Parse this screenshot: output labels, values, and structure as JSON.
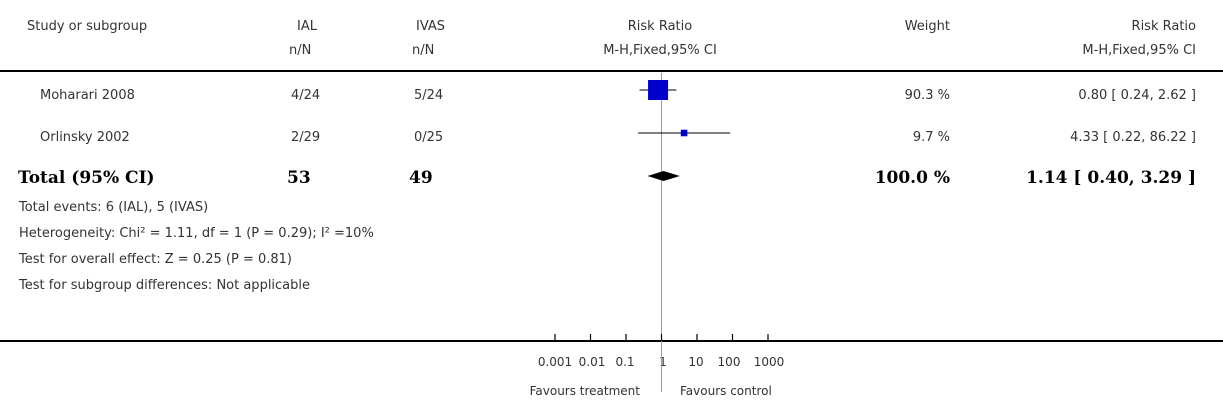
{
  "header": {
    "study": "Study or subgroup",
    "group1": "IAL",
    "group2": "IVAS",
    "nN1": "n/N",
    "nN2": "n/N",
    "plot_title": "Risk Ratio",
    "plot_method": "M-H,Fixed,95% CI",
    "weight": "Weight",
    "effect_title": "Risk Ratio",
    "effect_method": "M-H,Fixed,95% CI"
  },
  "rows": [
    {
      "study": "Moharari 2008",
      "g1": "4/24",
      "g2": "5/24",
      "weight": "90.3 %",
      "ci": "0.80 [ 0.24, 2.62 ]"
    },
    {
      "study": "Orlinsky 2002",
      "g1": "2/29",
      "g2": "0/25",
      "weight": "9.7 %",
      "ci": "4.33 [ 0.22, 86.22 ]"
    }
  ],
  "total": {
    "label": "Total (95% CI)",
    "g1": "53",
    "g2": "49",
    "weight": "100.0 %",
    "ci": "1.14 [ 0.40, 3.29 ]"
  },
  "notes": {
    "events": "Total events: 6 (IAL), 5 (IVAS)",
    "heterogeneity": "Heterogeneity: Chi² = 1.11, df = 1 (P = 0.29); I² =10%",
    "overall": "Test for overall effect: Z = 0.25 (P = 0.81)",
    "subgroup": "Test for subgroup differences: Not applicable"
  },
  "axis": {
    "ticks": [
      "0.001",
      "0.01",
      "0.1",
      "1",
      "10",
      "100",
      "1000"
    ],
    "favours_left": "Favours treatment",
    "favours_right": "Favours control"
  },
  "chart_data": {
    "type": "forest",
    "scale": "log",
    "xlim": [
      0.001,
      1000
    ],
    "tick_values": [
      0.001,
      0.01,
      0.1,
      1,
      10,
      100,
      1000
    ],
    "reference": 1,
    "studies": [
      {
        "name": "Moharari 2008",
        "rr": 0.8,
        "lower": 0.24,
        "upper": 2.62,
        "weight": 90.3
      },
      {
        "name": "Orlinsky 2002",
        "rr": 4.33,
        "lower": 0.22,
        "upper": 86.22,
        "weight": 9.7
      }
    ],
    "pooled": {
      "rr": 1.14,
      "lower": 0.4,
      "upper": 3.29
    },
    "marker_color": "#0000cc"
  }
}
